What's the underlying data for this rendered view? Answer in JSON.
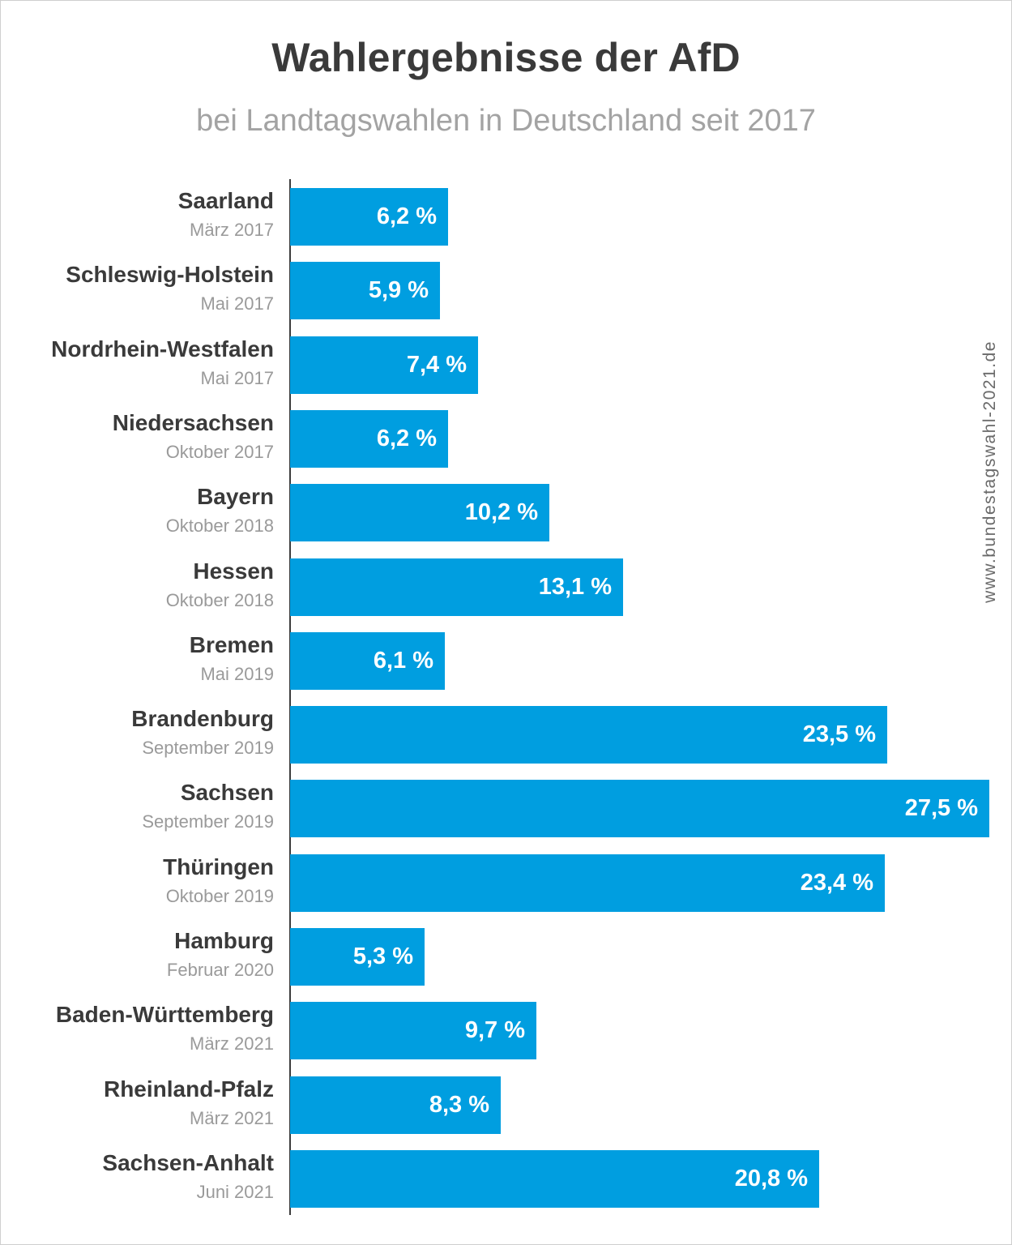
{
  "chart_data": {
    "type": "bar",
    "orientation": "horizontal",
    "title": "Wahlergebnisse der AfD",
    "subtitle": "bei Landtagswahlen in Deutschland seit 2017",
    "xlabel": "",
    "ylabel": "",
    "xlim": [
      0,
      27.5
    ],
    "grid": false,
    "bar_color": "#009ee0",
    "categories": [
      {
        "name": "Saarland",
        "date": "März 2017",
        "value": 6.2,
        "label": "6,2 %"
      },
      {
        "name": "Schleswig-Holstein",
        "date": "Mai 2017",
        "value": 5.9,
        "label": "5,9 %"
      },
      {
        "name": "Nordrhein-Westfalen",
        "date": "Mai 2017",
        "value": 7.4,
        "label": "7,4 %"
      },
      {
        "name": "Niedersachsen",
        "date": "Oktober 2017",
        "value": 6.2,
        "label": "6,2 %"
      },
      {
        "name": "Bayern",
        "date": "Oktober 2018",
        "value": 10.2,
        "label": "10,2 %"
      },
      {
        "name": "Hessen",
        "date": "Oktober 2018",
        "value": 13.1,
        "label": "13,1 %"
      },
      {
        "name": "Bremen",
        "date": "Mai 2019",
        "value": 6.1,
        "label": "6,1 %"
      },
      {
        "name": "Brandenburg",
        "date": "September 2019",
        "value": 23.5,
        "label": "23,5 %"
      },
      {
        "name": "Sachsen",
        "date": "September 2019",
        "value": 27.5,
        "label": "27,5 %"
      },
      {
        "name": "Thüringen",
        "date": "Oktober 2019",
        "value": 23.4,
        "label": "23,4 %"
      },
      {
        "name": "Hamburg",
        "date": "Februar 2020",
        "value": 5.3,
        "label": "5,3 %"
      },
      {
        "name": "Baden-Württemberg",
        "date": "März 2021",
        "value": 9.7,
        "label": "9,7 %"
      },
      {
        "name": "Rheinland-Pfalz",
        "date": "März 2021",
        "value": 8.3,
        "label": "8,3 %"
      },
      {
        "name": "Sachsen-Anhalt",
        "date": "Juni 2021",
        "value": 20.8,
        "label": "20,8 %"
      }
    ]
  },
  "watermark": "www.bundestagswahl-2021.de"
}
